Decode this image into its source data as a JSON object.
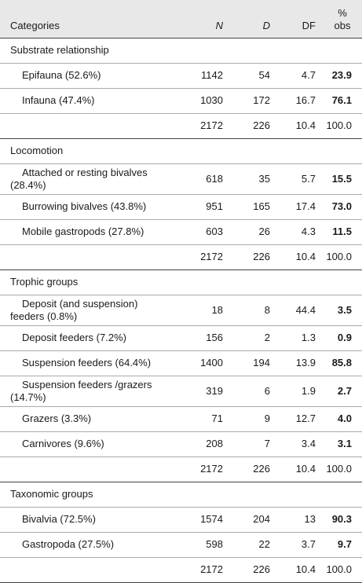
{
  "header": {
    "categories": "Categories",
    "n": "N",
    "d": "D",
    "df": "DF",
    "obs": "% obs"
  },
  "groups": [
    {
      "title": "Substrate relationship",
      "rows": [
        {
          "label": "Epifauna (52.6%)",
          "n": "1142",
          "d": "54",
          "df": "4.7",
          "obs": "23.9"
        },
        {
          "label": "Infauna (47.4%)",
          "n": "1030",
          "d": "172",
          "df": "16.7",
          "obs": "76.1"
        }
      ],
      "total": {
        "n": "2172",
        "d": "226",
        "df": "10.4",
        "obs": "100.0"
      }
    },
    {
      "title": "Locomotion",
      "rows": [
        {
          "label": "Attached or resting bivalves (28.4%)",
          "n": "618",
          "d": "35",
          "df": "5.7",
          "obs": "15.5"
        },
        {
          "label": "Burrowing bivalves (43.8%)",
          "n": "951",
          "d": "165",
          "df": "17.4",
          "obs": "73.0"
        },
        {
          "label": "Mobile gastropods (27.8%)",
          "n": "603",
          "d": "26",
          "df": "4.3",
          "obs": "11.5"
        }
      ],
      "total": {
        "n": "2172",
        "d": "226",
        "df": "10.4",
        "obs": "100.0"
      }
    },
    {
      "title": "Trophic groups",
      "rows": [
        {
          "label": "Deposit (and suspension) feeders (0.8%)",
          "n": "18",
          "d": "8",
          "df": "44.4",
          "obs": "3.5"
        },
        {
          "label": "Deposit feeders (7.2%)",
          "n": "156",
          "d": "2",
          "df": "1.3",
          "obs": "0.9"
        },
        {
          "label": "Suspension feeders (64.4%)",
          "n": "1400",
          "d": "194",
          "df": "13.9",
          "obs": "85.8"
        },
        {
          "label": "Suspension feeders /grazers (14.7%)",
          "n": "319",
          "d": "6",
          "df": "1.9",
          "obs": "2.7"
        },
        {
          "label": "Grazers (3.3%)",
          "n": "71",
          "d": "9",
          "df": "12.7",
          "obs": "4.0"
        },
        {
          "label": "Carnivores (9.6%)",
          "n": "208",
          "d": "7",
          "df": "3.4",
          "obs": "3.1"
        }
      ],
      "total": {
        "n": "2172",
        "d": "226",
        "df": "10.4",
        "obs": "100.0"
      }
    },
    {
      "title": "Taxonomic groups",
      "rows": [
        {
          "label": "Bivalvia (72.5%)",
          "n": "1574",
          "d": "204",
          "df": "13",
          "obs": "90.3"
        },
        {
          "label": "Gastropoda (27.5%)",
          "n": "598",
          "d": "22",
          "df": "3.7",
          "obs": "9.7"
        }
      ],
      "total": {
        "n": "2172",
        "d": "226",
        "df": "10.4",
        "obs": "100.0"
      }
    }
  ]
}
